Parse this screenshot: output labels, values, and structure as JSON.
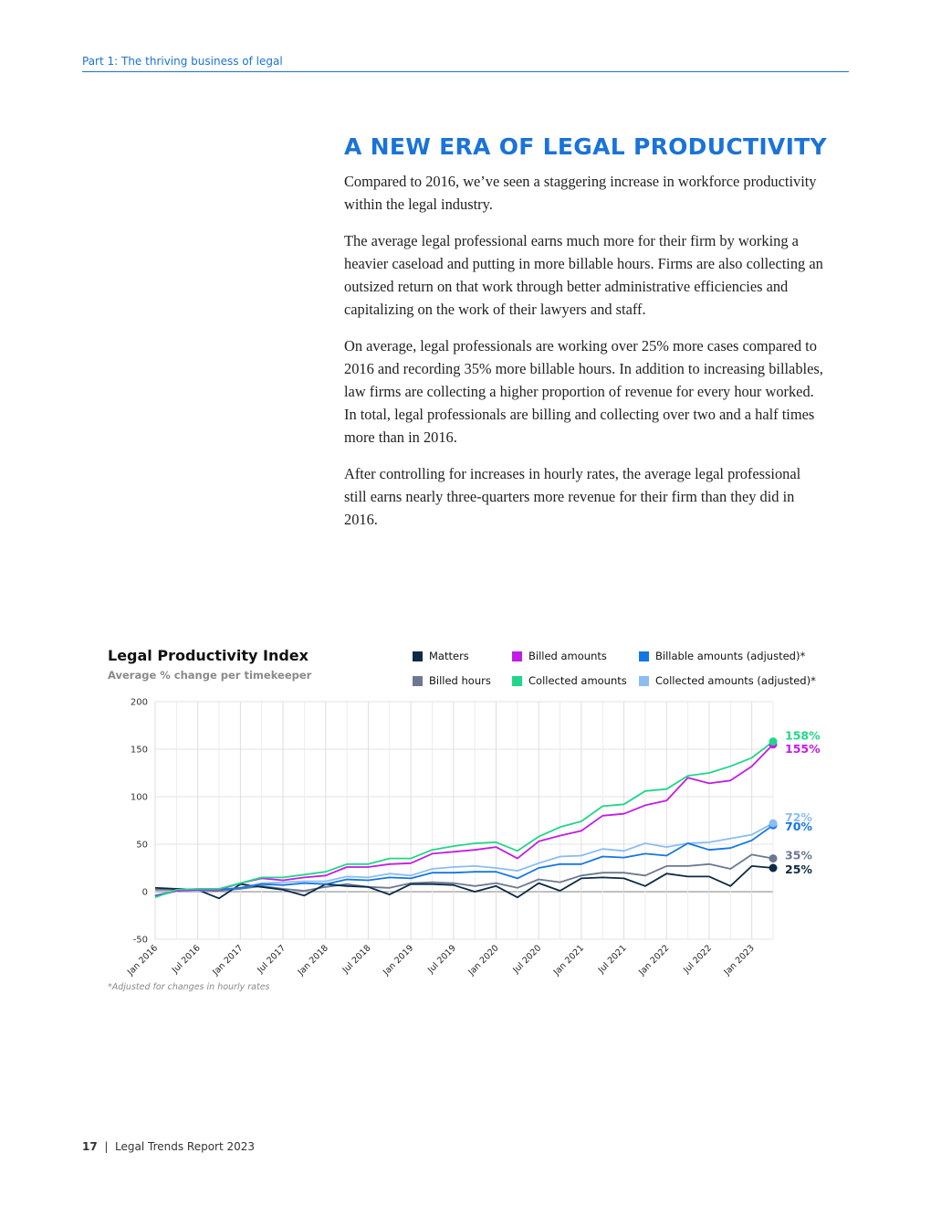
{
  "header": {
    "section": "Part 1: The thriving business of legal"
  },
  "article": {
    "title": "A NEW ERA OF LEGAL PRODUCTIVITY",
    "paragraphs": [
      "Compared to 2016, we’ve seen a staggering increase in workforce productivity within the legal industry.",
      "The average legal professional earns much more for their firm by working a heavier caseload and putting in more billable hours. Firms are also collecting an outsized return on that work through better administrative efficiencies and capitalizing on the work of their lawyers and staff.",
      "On average, legal professionals are working over 25% more cases compared to 2016 and recording 35% more billable hours. In addition to increasing billables, law firms are collecting a higher proportion of revenue for every hour worked. In total, legal professionals are billing and collecting over two and a half times more than in 2016.",
      "After controlling for increases in hourly rates, the average legal professional still earns nearly three-quarters more revenue for their firm than they did in 2016."
    ]
  },
  "chart": {
    "title": "Legal Productivity Index",
    "subtitle": "Average % change per timekeeper",
    "footnote": "*Adjusted for changes in hourly rates"
  },
  "chart_data": {
    "type": "line",
    "title": "Legal Productivity Index",
    "subtitle": "Average % change per timekeeper",
    "ylim": [
      -50,
      200
    ],
    "yticks": [
      -50,
      0,
      50,
      100,
      150,
      200
    ],
    "xtick_labels": [
      "Jan 2016",
      "Jul 2016",
      "Jan 2017",
      "Jul 2017",
      "Jan 2018",
      "Jul 2018",
      "Jan 2019",
      "Jul 2019",
      "Jan 2020",
      "Jul 2020",
      "Jan 2021",
      "Jul 2021",
      "Jan 2022",
      "Jul 2022",
      "Jan 2023"
    ],
    "x": [
      "Jan 2016",
      "Apr 2016",
      "Jul 2016",
      "Oct 2016",
      "Jan 2017",
      "Apr 2017",
      "Jul 2017",
      "Oct 2017",
      "Jan 2018",
      "Apr 2018",
      "Jul 2018",
      "Oct 2018",
      "Jan 2019",
      "Apr 2019",
      "Jul 2019",
      "Oct 2019",
      "Jan 2020",
      "Apr 2020",
      "Jul 2020",
      "Oct 2020",
      "Jan 2021",
      "Apr 2021",
      "Jul 2021",
      "Oct 2021",
      "Jan 2022",
      "Apr 2022",
      "Jul 2022",
      "Oct 2022",
      "Jan 2023",
      "Apr 2023"
    ],
    "grid": true,
    "legend_position": "top-right",
    "series": [
      {
        "name": "Matters",
        "color": "#0d2b45",
        "end_label": "25%",
        "values": [
          4,
          3,
          2,
          -7,
          8,
          5,
          2,
          -4,
          8,
          6,
          5,
          -3,
          8,
          8,
          7,
          0,
          6,
          -6,
          9,
          1,
          14,
          15,
          14,
          6,
          19,
          16,
          16,
          6,
          27,
          25
        ]
      },
      {
        "name": "Billed hours",
        "color": "#6c7892",
        "end_label": "35%",
        "values": [
          2,
          2,
          1,
          1,
          3,
          6,
          3,
          1,
          5,
          8,
          5,
          4,
          9,
          10,
          9,
          6,
          9,
          4,
          13,
          10,
          17,
          20,
          20,
          17,
          27,
          27,
          29,
          24,
          39,
          35
        ]
      },
      {
        "name": "Billed amounts",
        "color": "#c11de6",
        "end_label": "155%",
        "values": [
          -5,
          1,
          2,
          2,
          9,
          14,
          12,
          15,
          17,
          26,
          26,
          29,
          30,
          40,
          42,
          44,
          47,
          35,
          53,
          59,
          64,
          80,
          82,
          91,
          96,
          120,
          114,
          117,
          132,
          155
        ]
      },
      {
        "name": "Collected amounts",
        "color": "#20d68a",
        "end_label": "158%",
        "values": [
          -6,
          2,
          3,
          3,
          9,
          15,
          15,
          18,
          21,
          29,
          29,
          35,
          35,
          44,
          48,
          51,
          52,
          43,
          58,
          68,
          74,
          90,
          92,
          106,
          108,
          122,
          125,
          132,
          141,
          158
        ]
      },
      {
        "name": "Billable amounts (adjusted)*",
        "color": "#1476e3",
        "end_label": "70%",
        "values": [
          -4,
          1,
          2,
          2,
          4,
          8,
          7,
          9,
          8,
          13,
          12,
          15,
          14,
          20,
          20,
          21,
          21,
          14,
          25,
          29,
          29,
          37,
          36,
          40,
          38,
          51,
          44,
          46,
          54,
          70
        ]
      },
      {
        "name": "Collected amounts (adjusted)*",
        "color": "#8cbcf2",
        "end_label": "72%",
        "values": [
          -5,
          1,
          1,
          2,
          4,
          9,
          10,
          11,
          11,
          16,
          15,
          19,
          17,
          24,
          26,
          27,
          25,
          22,
          30,
          37,
          38,
          45,
          43,
          51,
          47,
          51,
          52,
          56,
          60,
          72
        ]
      }
    ]
  },
  "footer": {
    "page_number": "17",
    "report": "Legal Trends Report 2023"
  }
}
